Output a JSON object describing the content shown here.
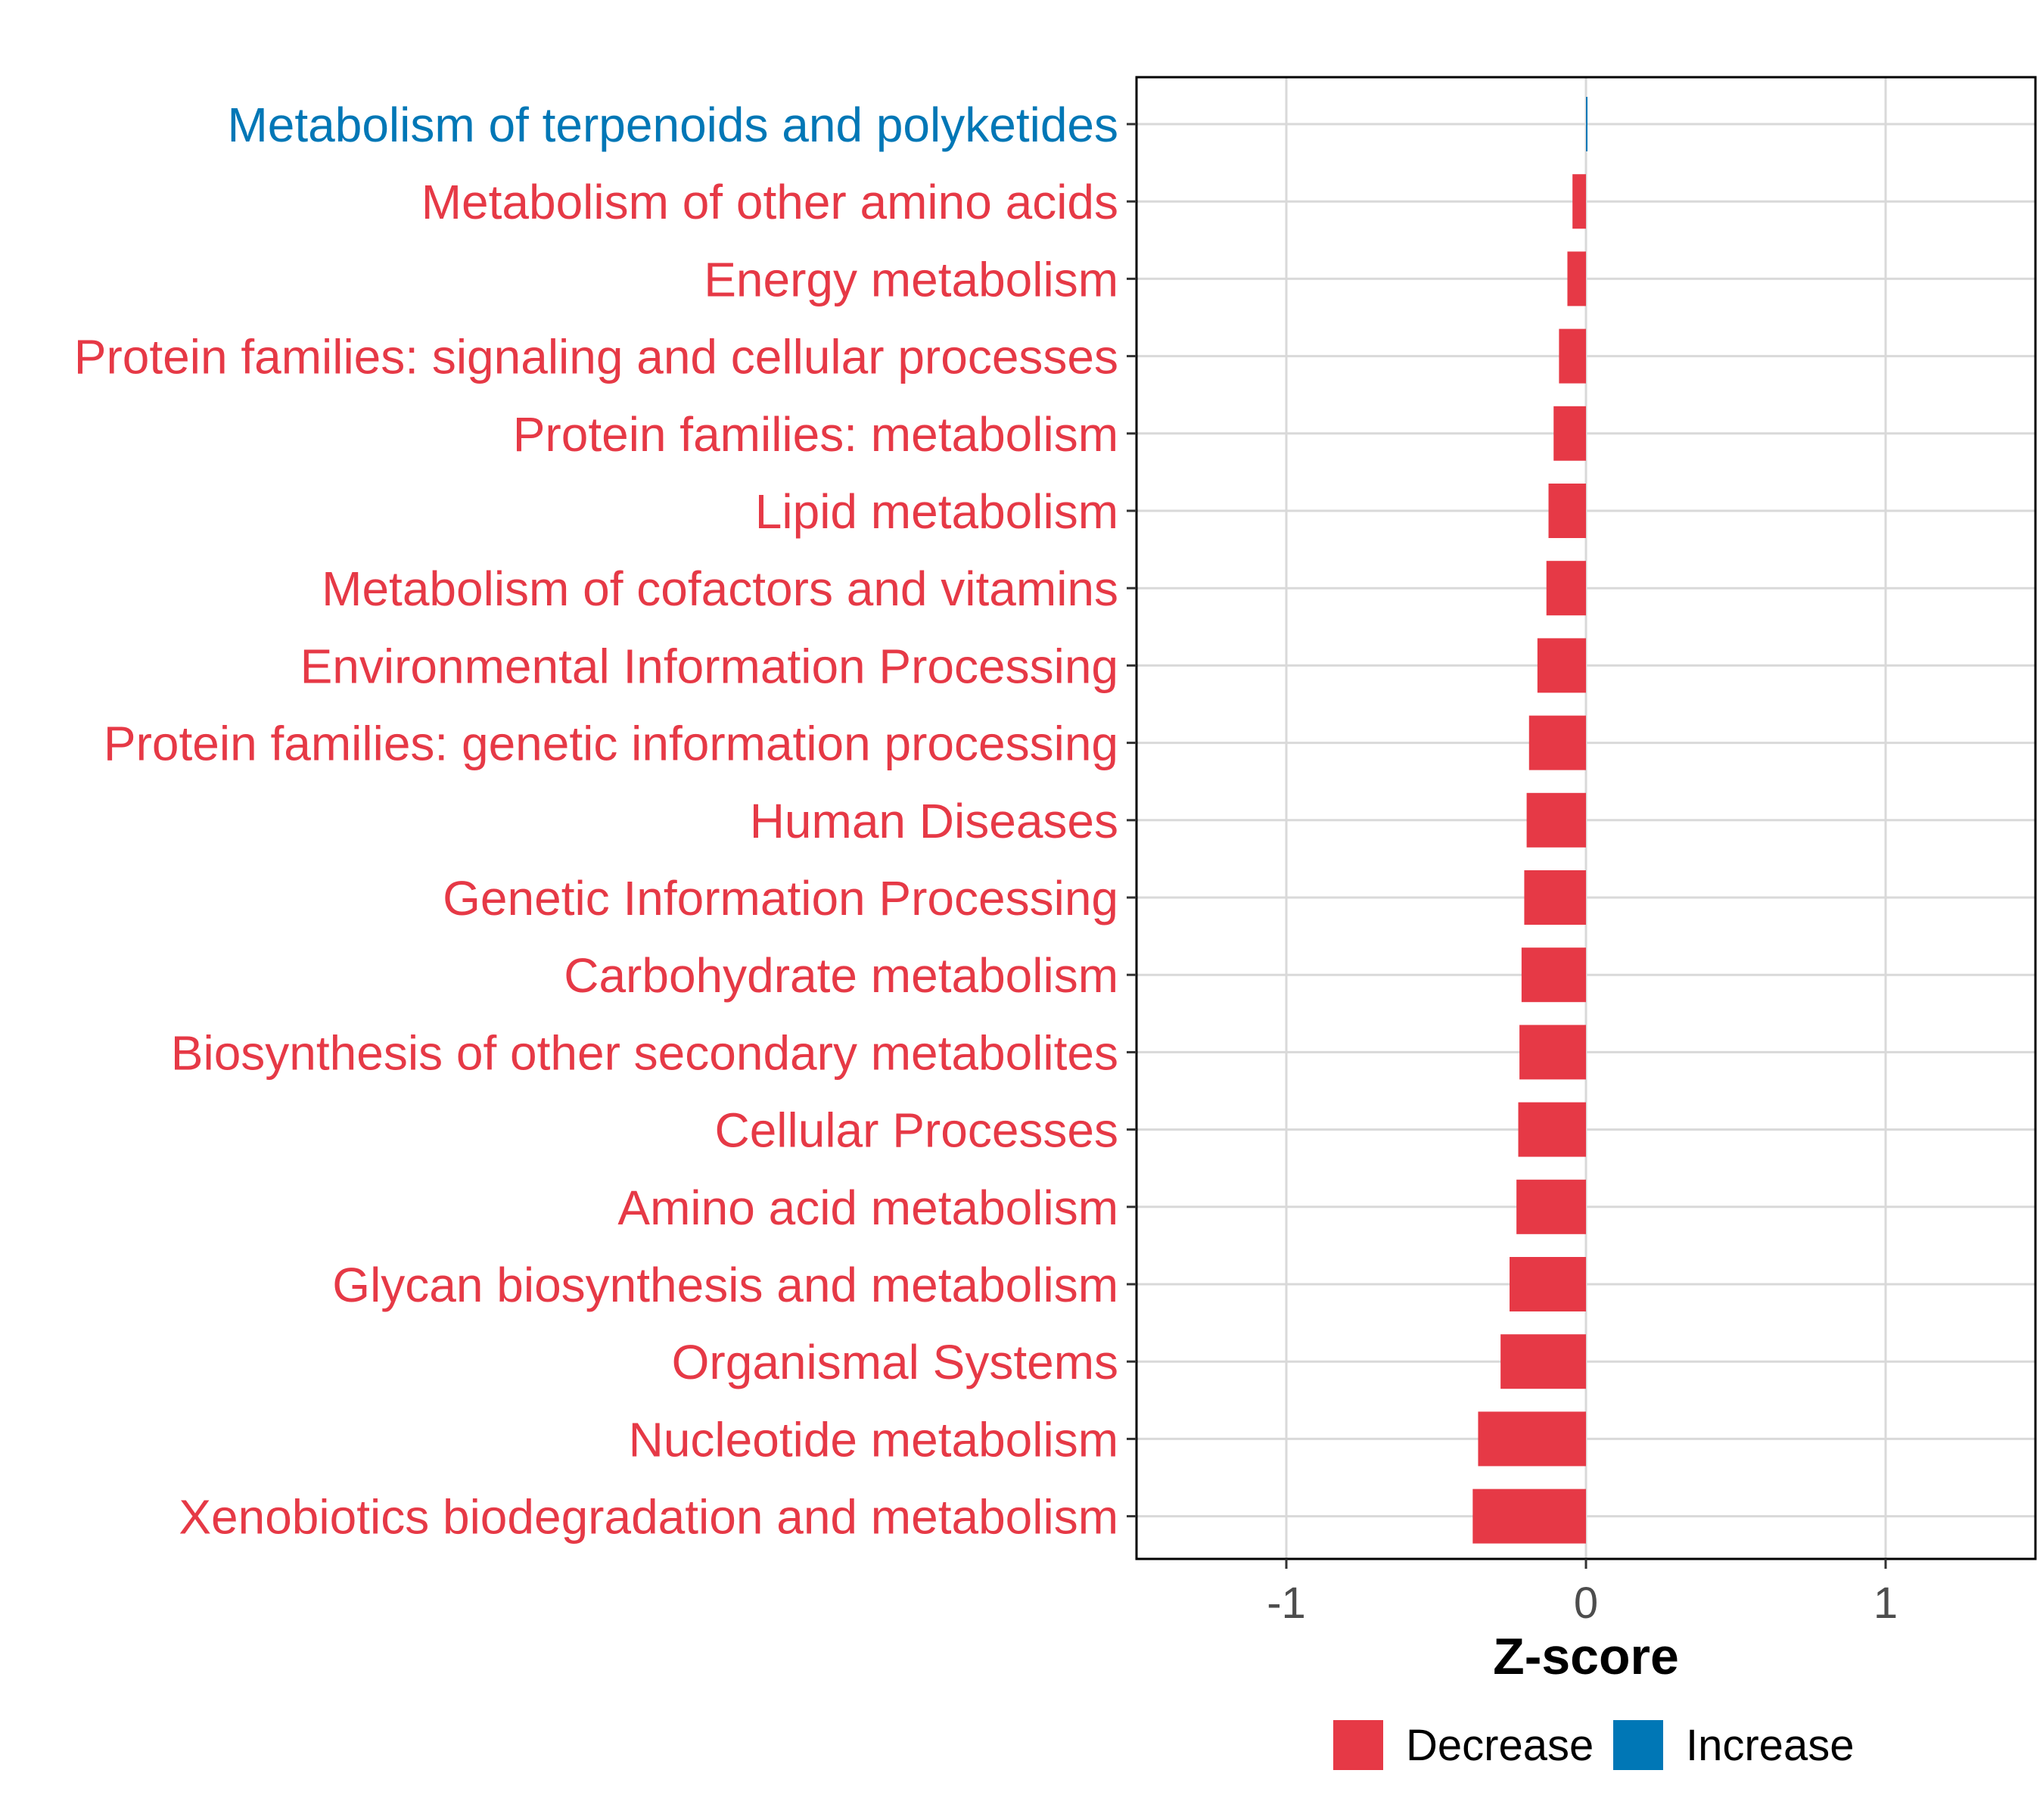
{
  "chart_data": {
    "type": "bar",
    "orientation": "horizontal",
    "title": "",
    "xlabel": "Z-score",
    "ylabel": "",
    "xlim": [
      -1.5,
      1.5
    ],
    "xticks": [
      -1,
      0,
      1
    ],
    "xtick_labels": [
      "-1",
      "0",
      "1"
    ],
    "grid": true,
    "legend_position": "bottom",
    "colors": {
      "Decrease": "#E63946",
      "Increase": "#0077B6",
      "grid": "#D9D9D9",
      "axis": "#000000",
      "tick_label": "#4D4D4D"
    },
    "categories": [
      "Metabolism of terpenoids and polyketides",
      "Metabolism of other amino acids",
      "Energy metabolism",
      "Protein families: signaling and cellular processes",
      "Protein families: metabolism",
      "Lipid metabolism",
      "Metabolism of cofactors and vitamins",
      "Environmental Information Processing",
      "Protein families: genetic information processing",
      "Human Diseases",
      "Genetic Information Processing",
      "Carbohydrate metabolism",
      "Biosynthesis of other secondary metabolites",
      "Cellular Processes",
      "Amino acid metabolism",
      "Glycan biosynthesis and metabolism",
      "Organismal Systems",
      "Nucleotide metabolism",
      "Xenobiotics biodegradation and metabolism"
    ],
    "values": [
      0.005,
      -0.045,
      -0.062,
      -0.09,
      -0.108,
      -0.125,
      -0.132,
      -0.162,
      -0.19,
      -0.198,
      -0.206,
      -0.215,
      -0.222,
      -0.226,
      -0.232,
      -0.255,
      -0.285,
      -0.36,
      -0.378
    ],
    "groups": [
      "Increase",
      "Decrease",
      "Decrease",
      "Decrease",
      "Decrease",
      "Decrease",
      "Decrease",
      "Decrease",
      "Decrease",
      "Decrease",
      "Decrease",
      "Decrease",
      "Decrease",
      "Decrease",
      "Decrease",
      "Decrease",
      "Decrease",
      "Decrease",
      "Decrease"
    ],
    "legend": {
      "entries": [
        {
          "label": "Decrease",
          "color": "#E63946"
        },
        {
          "label": "Increase",
          "color": "#0077B6"
        }
      ]
    }
  }
}
